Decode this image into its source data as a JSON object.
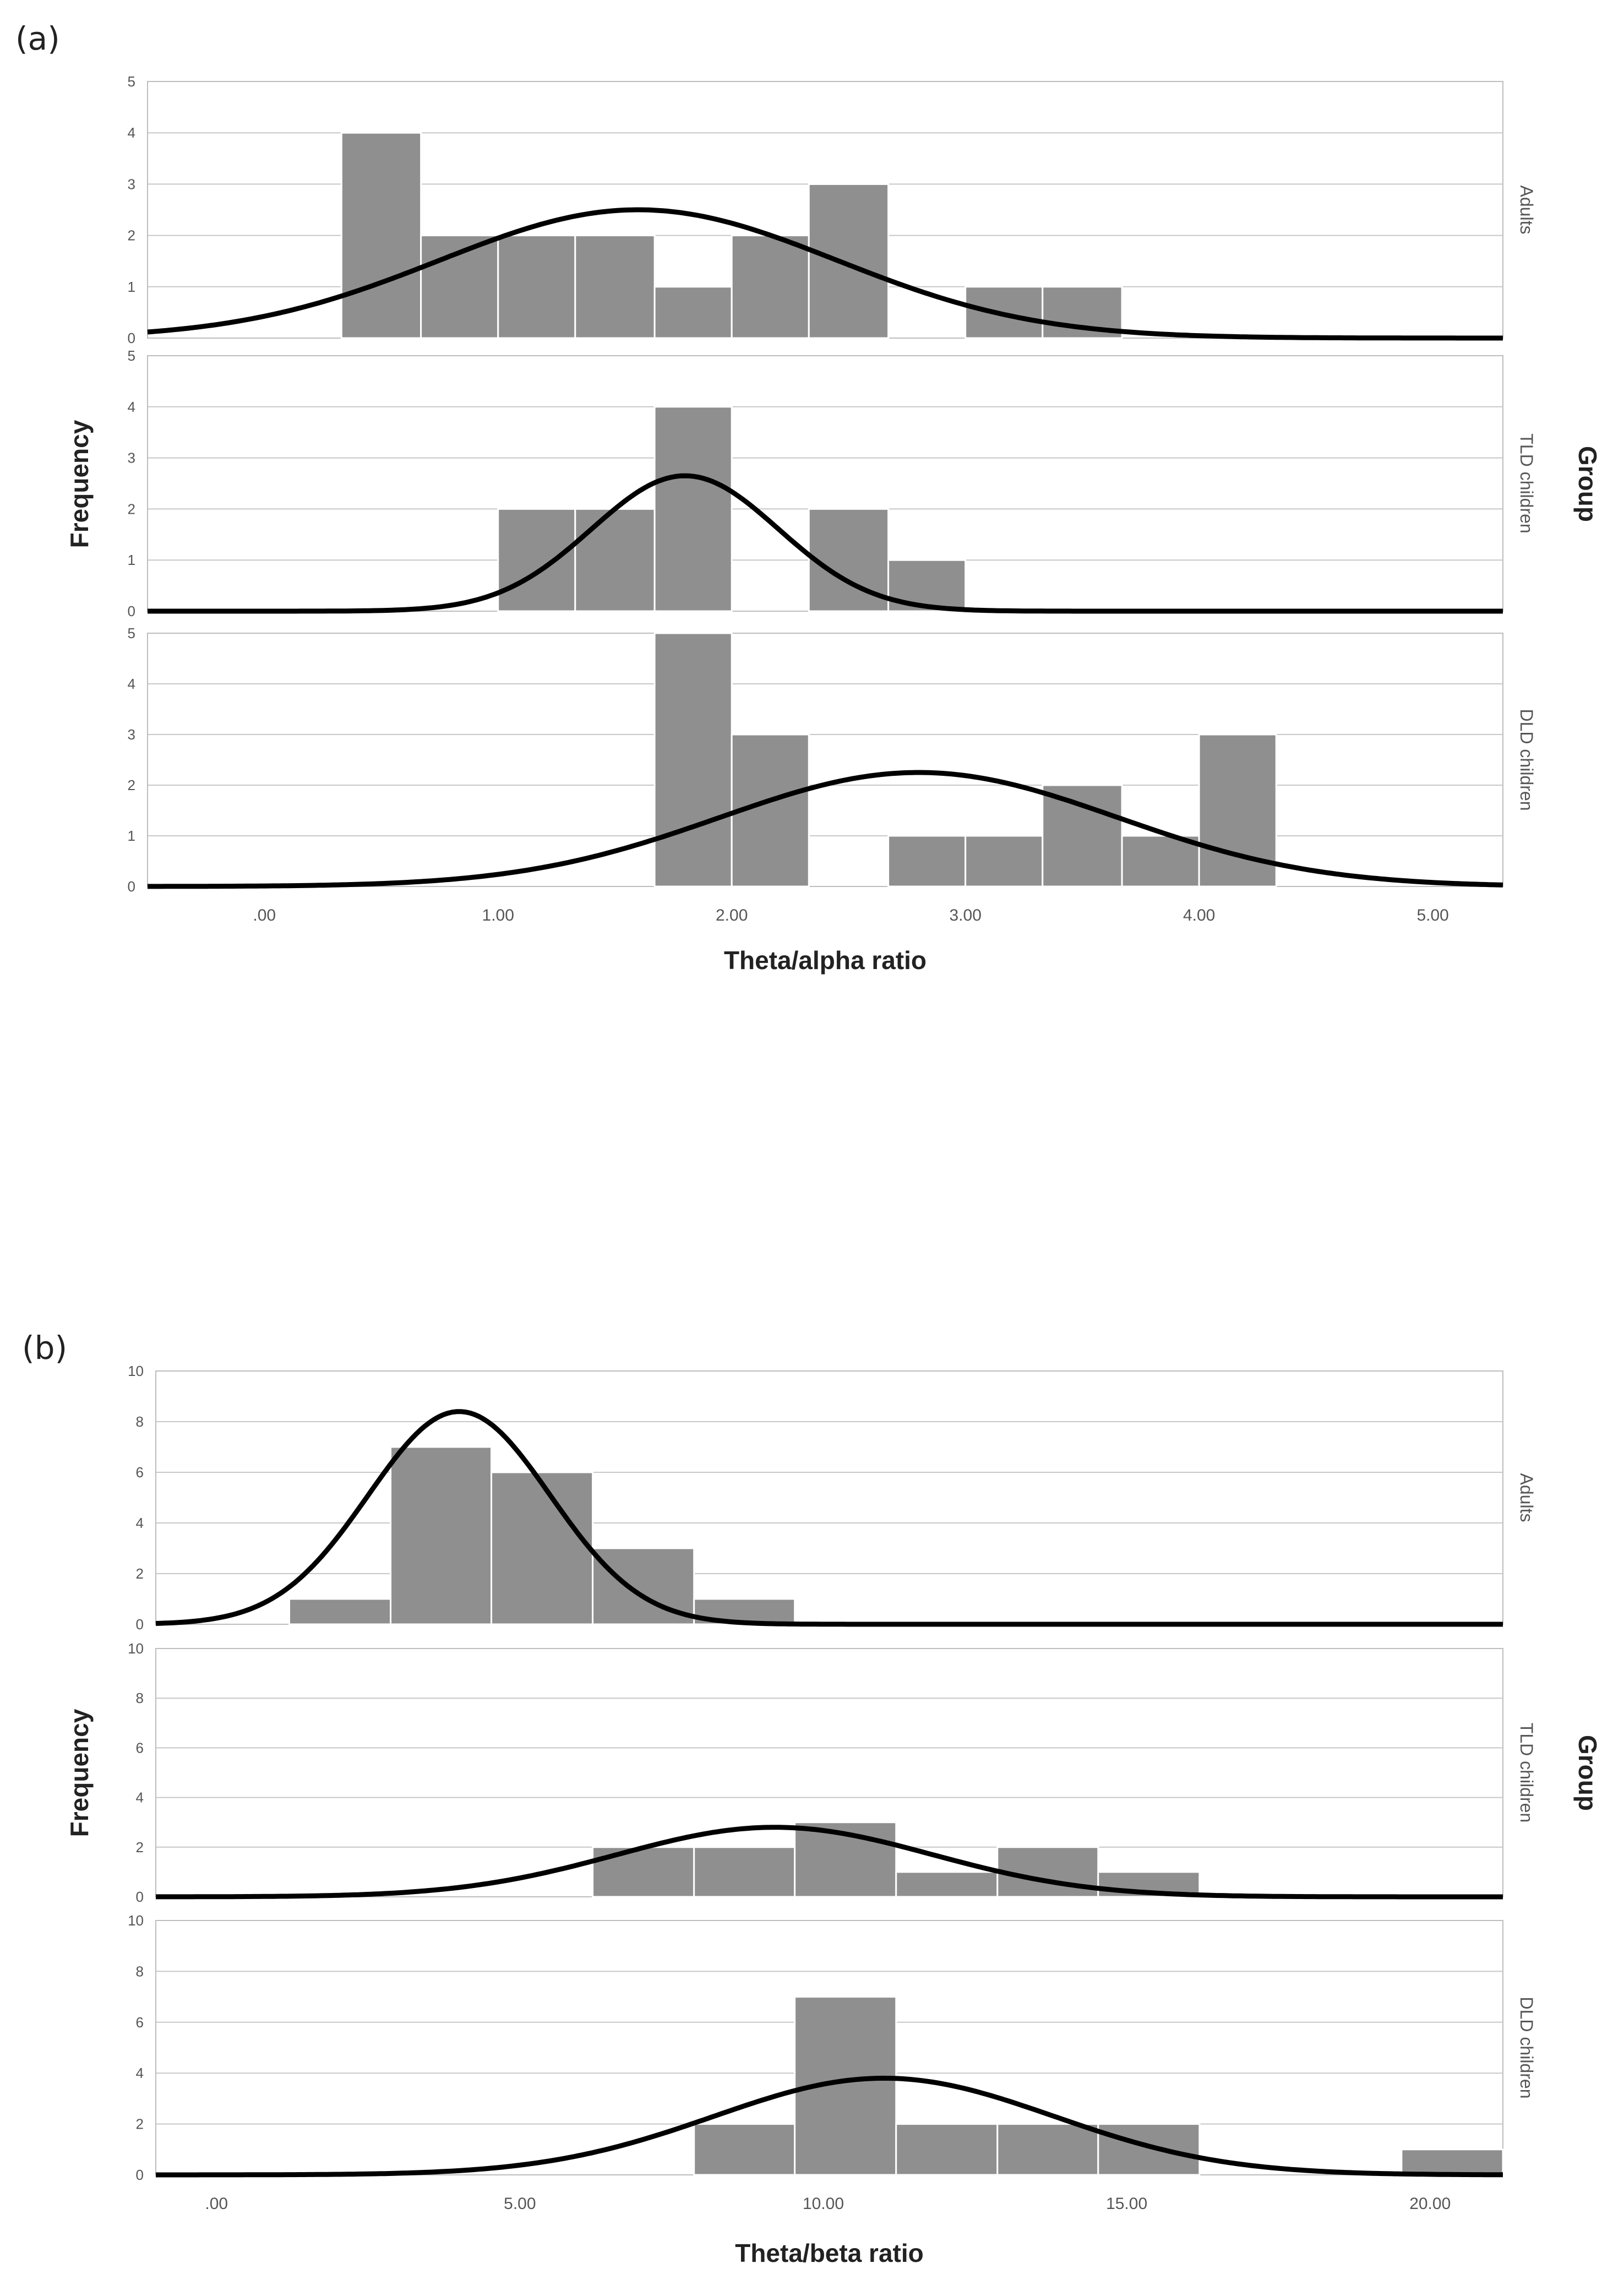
{
  "chart_data": [
    {
      "type": "bar",
      "panel_label": "(a)",
      "subtype": "faceted histogram with normal curve",
      "xlabel": "Theta/alpha ratio",
      "ylabel": "Frequency",
      "facet_title": "Group",
      "xlim": [
        -0.5,
        5.3
      ],
      "xticks": [
        0,
        1,
        2,
        3,
        4,
        5
      ],
      "xtick_labels": [
        ".00",
        "1.00",
        "2.00",
        "3.00",
        "4.00",
        "5.00"
      ],
      "ylim": [
        0,
        5
      ],
      "yticks": [
        0,
        1,
        2,
        3,
        4,
        5
      ],
      "ytick_labels": [
        "0",
        "1",
        "2",
        "3",
        "4",
        "5"
      ],
      "bin_edges": [
        0.33,
        0.67,
        1.0,
        1.33,
        1.67,
        2.0,
        2.33,
        2.67,
        3.0,
        3.33,
        3.67,
        4.0,
        4.33
      ],
      "series": [
        {
          "name": "Adults",
          "counts": [
            4,
            2,
            2,
            2,
            1,
            2,
            3,
            0,
            1,
            1,
            0,
            0
          ],
          "curve_mean": 1.6,
          "curve_peak": 2.5,
          "curve_sd": 0.85
        },
        {
          "name": "TLD children",
          "counts": [
            0,
            0,
            2,
            2,
            4,
            0,
            2,
            1,
            0,
            0,
            0,
            0
          ],
          "curve_mean": 1.8,
          "curve_peak": 2.65,
          "curve_sd": 0.4
        },
        {
          "name": "DLD children",
          "counts": [
            0,
            0,
            0,
            0,
            5,
            3,
            0,
            1,
            1,
            2,
            1,
            3
          ],
          "curve_mean": 2.8,
          "curve_peak": 2.25,
          "curve_sd": 0.85
        }
      ]
    },
    {
      "type": "bar",
      "panel_label": "(b)",
      "subtype": "faceted histogram with normal curve",
      "xlabel": "Theta/beta ratio",
      "ylabel": "Frequency",
      "facet_title": "Group",
      "xlim": [
        -1.0,
        21.2
      ],
      "xticks": [
        0,
        5,
        10,
        15,
        20
      ],
      "xtick_labels": [
        ".00",
        "5.00",
        "10.00",
        "15.00",
        "20.00"
      ],
      "ylim": [
        0,
        10
      ],
      "yticks": [
        0,
        2,
        4,
        6,
        8,
        10
      ],
      "ytick_labels": [
        "0",
        "2",
        "4",
        "6",
        "8",
        "10"
      ],
      "bin_edges": [
        1.2,
        2.87,
        4.53,
        6.2,
        7.87,
        9.53,
        11.2,
        12.87,
        14.53,
        16.2,
        17.87,
        19.53,
        21.2
      ],
      "series": [
        {
          "name": "Adults",
          "counts": [
            1,
            7,
            6,
            3,
            1,
            0,
            0,
            0,
            0,
            0,
            0,
            0
          ],
          "curve_mean": 4.0,
          "curve_peak": 8.4,
          "curve_sd": 1.5
        },
        {
          "name": "TLD children",
          "counts": [
            0,
            0,
            0,
            2,
            2,
            3,
            1,
            2,
            1,
            0,
            0,
            0
          ],
          "curve_mean": 9.2,
          "curve_peak": 2.8,
          "curve_sd": 2.6
        },
        {
          "name": "DLD children",
          "counts": [
            0,
            0,
            0,
            0,
            2,
            7,
            2,
            2,
            2,
            0,
            0,
            1
          ],
          "curve_mean": 11.0,
          "curve_peak": 3.8,
          "curve_sd": 2.8
        }
      ]
    }
  ]
}
